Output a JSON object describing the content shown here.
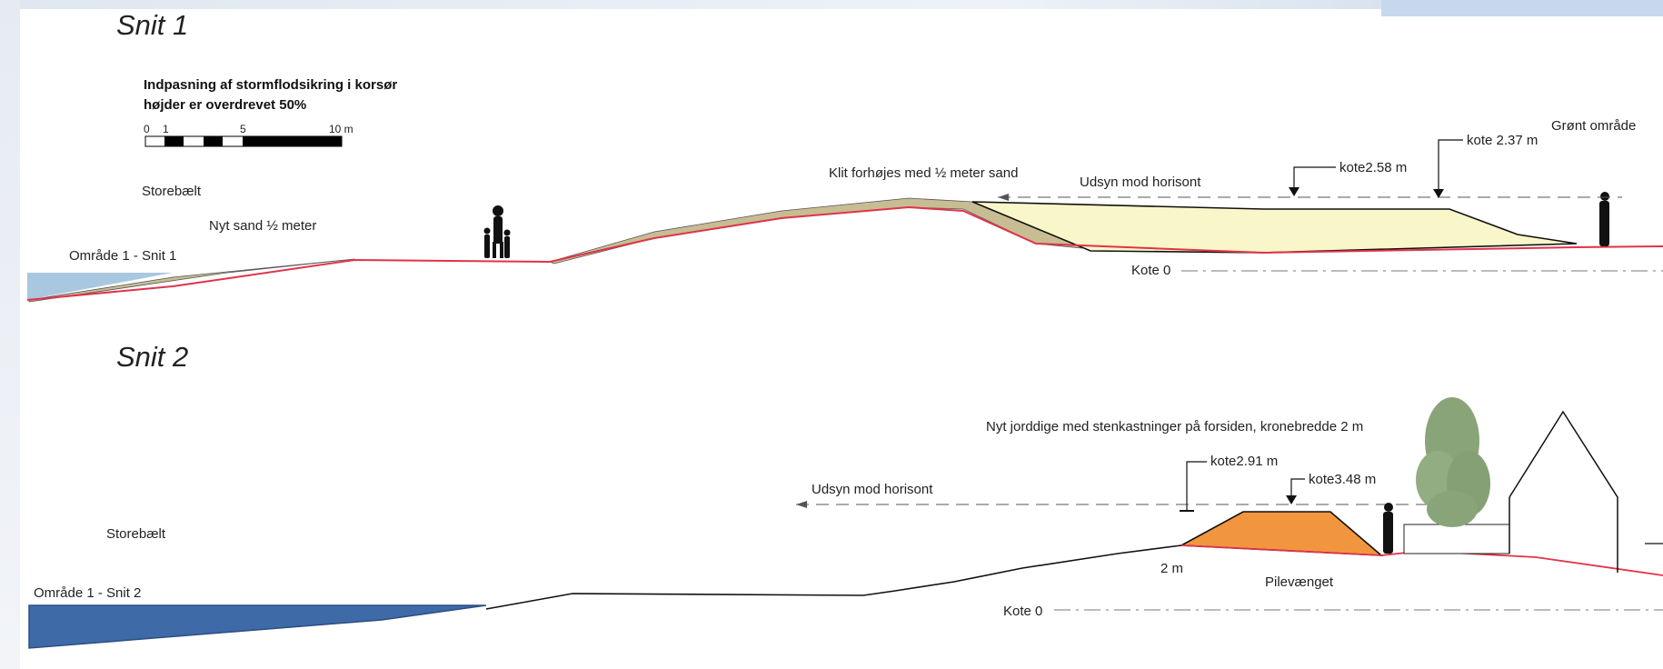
{
  "section1": {
    "title": "Snit 1",
    "legend_line1": "Indpasning af stormflodsikring i korsør",
    "legend_line2": "højder er overdrevet 50%",
    "scale_ticks": [
      "0",
      "1",
      "5",
      "10 m"
    ],
    "sea_label": "Storebælt",
    "new_sand_label": "Nyt sand ½ meter",
    "area_label": "Område 1 - Snit 1",
    "dune_label": "Klit forhøjes med ½ meter sand",
    "view_label": "Udsyn mod horisont",
    "kote_a_label": "kote2.58 m",
    "kote_b_label": "kote 2.37 m",
    "green_area_label": "Grønt område",
    "kote0_label": "Kote 0"
  },
  "section2": {
    "title": "Snit 2",
    "dike_label": "Nyt jorddige med stenkastninger på forsiden, kronebredde 2 m",
    "kote_a_label": "kote2.91 m",
    "kote_b_label": "kote3.48 m",
    "view_label": "Udsyn mod horisont",
    "sea_label": "Storebælt",
    "area_label": "Område 1 - Snit 2",
    "width_label": "2 m",
    "place_label": "Pilevænget",
    "kote0_label": "Kote 0"
  },
  "colors": {
    "sea_light": "#a9c8e0",
    "sea_dark": "#3e6aa8",
    "sand": "#c8bc93",
    "dike_fill_1": "#f9f7c9",
    "dike_fill_2": "#f2953f",
    "terrain_line": "#e0334a",
    "tree": "#8aa47a"
  }
}
